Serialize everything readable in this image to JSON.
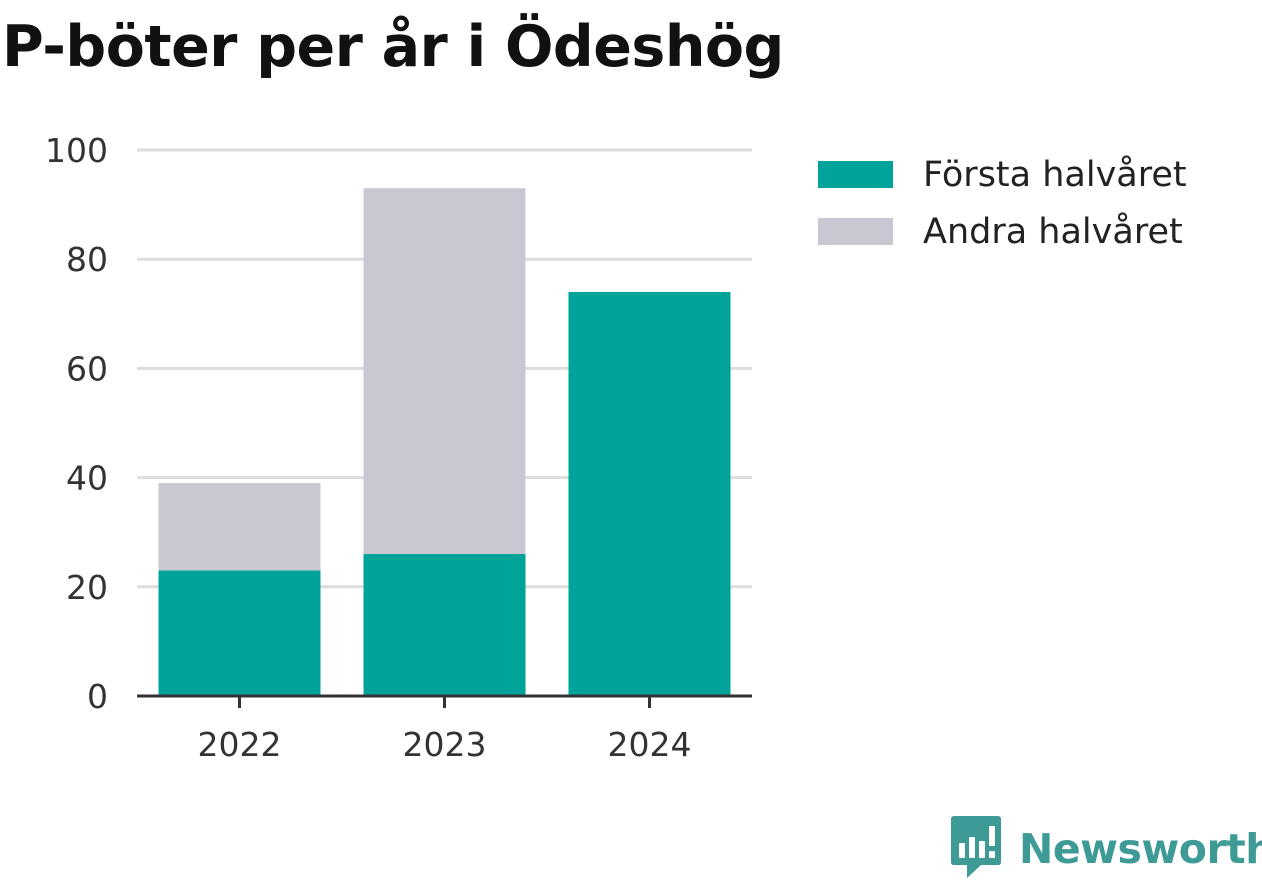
{
  "chart_data": {
    "type": "bar",
    "stacked": true,
    "title": "P-böter per år i Ödeshög",
    "categories": [
      "2022",
      "2023",
      "2024"
    ],
    "series": [
      {
        "name": "Första halvåret",
        "color": "#00a39a",
        "values": [
          23,
          26,
          74
        ]
      },
      {
        "name": "Andra halvåret",
        "color": "#c8c7d2",
        "values": [
          16,
          67,
          0
        ]
      }
    ],
    "ylim": [
      0,
      100
    ],
    "yticks": [
      0,
      20,
      40,
      60,
      80,
      100
    ],
    "ylabel": "",
    "xlabel": "",
    "grid": true,
    "legend_position": "right"
  },
  "brand": {
    "name": "Newsworthy",
    "logo_icon": "bar-chart-speech-bubble-icon",
    "color": "#3d9a94"
  }
}
